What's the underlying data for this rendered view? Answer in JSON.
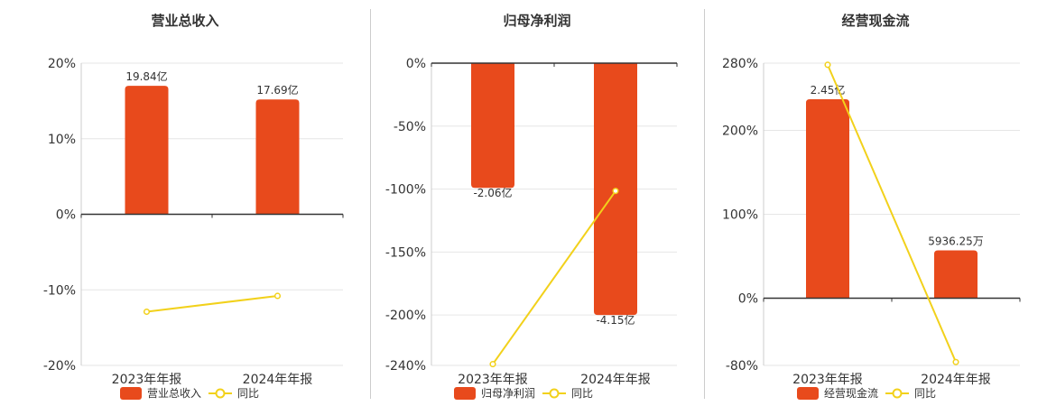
{
  "colors": {
    "bar": "#E84A1C",
    "line": "#F2D11B",
    "axis": "#333333",
    "grid": "#E6E6E6"
  },
  "chart_data": [
    {
      "type": "bar",
      "title": "营业总收入",
      "categories": [
        "2023年年报",
        "2024年年报"
      ],
      "series": [
        {
          "name": "营业总收入",
          "kind": "bar",
          "values": [
            19.84,
            17.69
          ],
          "labels": [
            "19.84亿",
            "17.69亿"
          ]
        },
        {
          "name": "同比",
          "kind": "line",
          "values": [
            -12.9,
            -10.8
          ]
        }
      ],
      "yticks": [
        "20%",
        "10%",
        "0%",
        "-10%",
        "-20%"
      ],
      "ylim": [
        -20,
        20
      ],
      "bar_pct": [
        17,
        15.2
      ]
    },
    {
      "type": "bar",
      "title": "归母净利润",
      "categories": [
        "2023年年报",
        "2024年年报"
      ],
      "series": [
        {
          "name": "归母净利润",
          "kind": "bar",
          "values": [
            -2.06,
            -4.15
          ],
          "labels": [
            "-2.06亿",
            "-4.15亿"
          ]
        },
        {
          "name": "同比",
          "kind": "line",
          "values": [
            -239,
            -101.5
          ]
        }
      ],
      "yticks": [
        "0%",
        "-50%",
        "-100%",
        "-150%",
        "-200%",
        "-240%"
      ],
      "ylim": [
        -240,
        0
      ],
      "bar_pct": [
        -99,
        -200
      ]
    },
    {
      "type": "bar",
      "title": "经营现金流",
      "categories": [
        "2023年年报",
        "2024年年报"
      ],
      "series": [
        {
          "name": "经营现金流",
          "kind": "bar",
          "values": [
            2.45,
            0.593625
          ],
          "labels": [
            "2.45亿",
            "5936.25万"
          ]
        },
        {
          "name": "同比",
          "kind": "line",
          "values": [
            278,
            -76
          ]
        }
      ],
      "yticks": [
        "280%",
        "200%",
        "100%",
        "0%",
        "-80%"
      ],
      "ylim": [
        -80,
        280
      ],
      "bar_pct": [
        237,
        57
      ]
    }
  ]
}
